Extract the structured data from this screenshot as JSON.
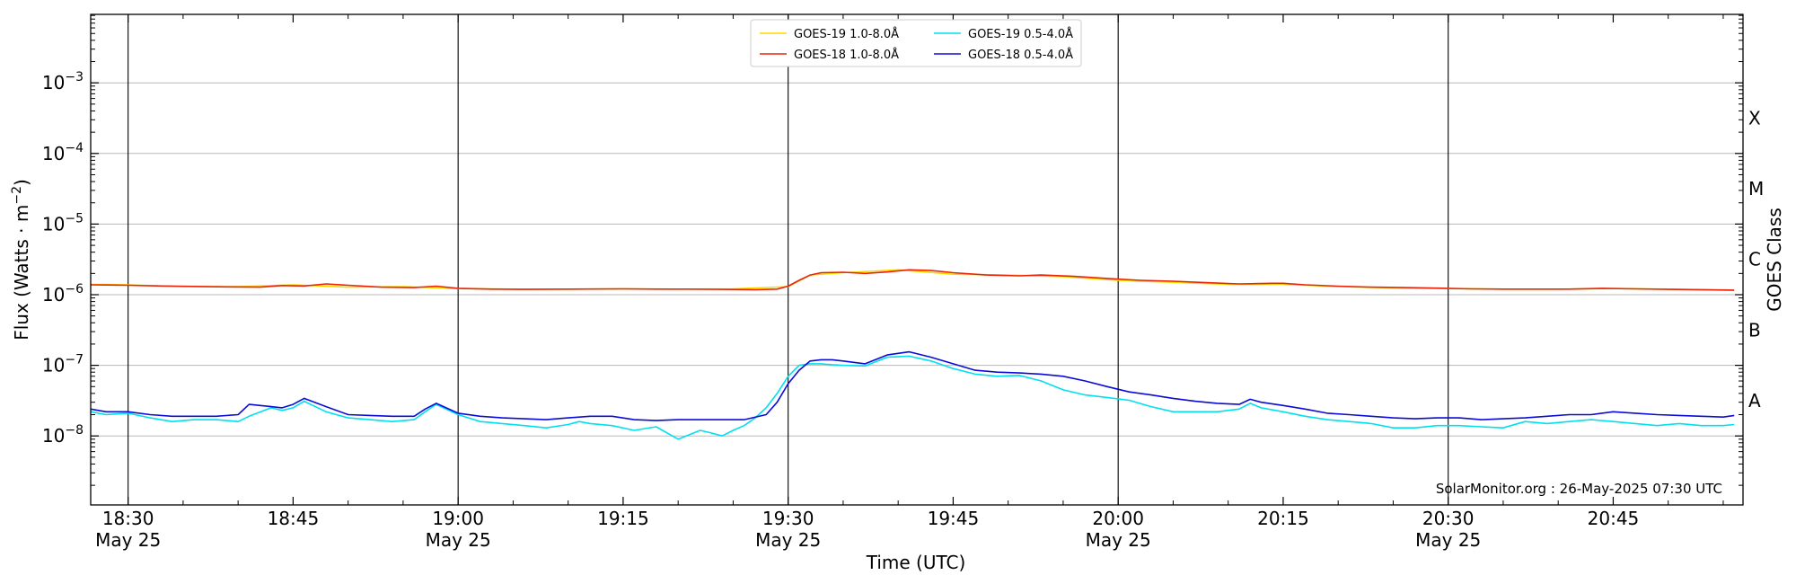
{
  "chart_data": {
    "type": "line",
    "xlabel": "Time (UTC)",
    "ylabel": "Flux (Watts · m",
    "ylabel_superscript": "−2",
    "ylabel_close": ")",
    "right_label": "GOES Class",
    "credit": "SolarMonitor.org : 26-May-2025 07:30 UTC",
    "x_unit": "minutes after 18:00 UTC, 25-May-2025",
    "xlim": [
      26.6,
      176.8
    ],
    "ylim_log10": [
      -9,
      -6
    ],
    "ylim_display": [
      "1e-9 (below axis)",
      "1e-2"
    ],
    "y_scale": "log",
    "grid": "horizontal at each decade",
    "legend_position": "top-center",
    "x_ticks": [
      {
        "value": 30,
        "time": "18:30",
        "date": "May 25"
      },
      {
        "value": 45,
        "time": "18:45",
        "date": ""
      },
      {
        "value": 60,
        "time": "19:00",
        "date": "May 25"
      },
      {
        "value": 75,
        "time": "19:15",
        "date": ""
      },
      {
        "value": 90,
        "time": "19:30",
        "date": "May 25"
      },
      {
        "value": 105,
        "time": "19:45",
        "date": ""
      },
      {
        "value": 120,
        "time": "20:00",
        "date": "May 25"
      },
      {
        "value": 135,
        "time": "20:15",
        "date": ""
      },
      {
        "value": 150,
        "time": "20:30",
        "date": "May 25"
      },
      {
        "value": 165,
        "time": "20:45",
        "date": ""
      }
    ],
    "vertical_lines_at": [
      30,
      60,
      90,
      120,
      150
    ],
    "y_ticks": [
      {
        "exp": -8,
        "base": "10",
        "sup": "−8"
      },
      {
        "exp": -7,
        "base": "10",
        "sup": "−7"
      },
      {
        "exp": -6,
        "base": "10",
        "sup": "−6"
      },
      {
        "exp": -5,
        "base": "10",
        "sup": "−5"
      },
      {
        "exp": -4,
        "base": "10",
        "sup": "−4"
      },
      {
        "exp": -3,
        "base": "10",
        "sup": "−3"
      }
    ],
    "goes_classes": [
      {
        "label": "A",
        "exp": -7.5
      },
      {
        "label": "B",
        "exp": -6.5
      },
      {
        "label": "C",
        "exp": -5.5
      },
      {
        "label": "M",
        "exp": -4.5
      },
      {
        "label": "X",
        "exp": -3.5
      }
    ],
    "series": [
      {
        "name": "GOES-19 1.0-8.0Å",
        "color": "#ffd700",
        "x": [
          26.6,
          30,
          35,
          40,
          45,
          50,
          55,
          60,
          65,
          70,
          75,
          80,
          85,
          90,
          92,
          95,
          100,
          105,
          110,
          115,
          120,
          125,
          130,
          135,
          140,
          145,
          150,
          155,
          160,
          165,
          170,
          176
        ],
        "y": [
          1.4e-06,
          1.38e-06,
          1.3e-06,
          1.3e-06,
          1.38e-06,
          1.28e-06,
          1.3e-06,
          1.22e-06,
          1.2e-06,
          1.2e-06,
          1.21e-06,
          1.2e-06,
          1.21e-06,
          1.3e-06,
          1.9e-06,
          2.05e-06,
          2.25e-06,
          1.95e-06,
          1.9e-06,
          1.8e-06,
          1.6e-06,
          1.5e-06,
          1.4e-06,
          1.4e-06,
          1.3e-06,
          1.25e-06,
          1.22e-06,
          1.2e-06,
          1.2e-06,
          1.22e-06,
          1.2e-06,
          1.15e-06
        ]
      },
      {
        "name": "GOES-18 1.0-8.0Å",
        "color": "#e8260c",
        "x": [
          26.6,
          30,
          33,
          36,
          39,
          42,
          44,
          46,
          48,
          50,
          53,
          56,
          58,
          60,
          63,
          66,
          70,
          75,
          78,
          81,
          84,
          87,
          89,
          90,
          91,
          92,
          93,
          95,
          97,
          99,
          101,
          103,
          105,
          108,
          111,
          113,
          116,
          119,
          122,
          125,
          128,
          131,
          134,
          135,
          137,
          140,
          143,
          146,
          149,
          152,
          155,
          158,
          161,
          164,
          167,
          170,
          173,
          176
        ],
        "y": [
          1.38e-06,
          1.36e-06,
          1.33e-06,
          1.31e-06,
          1.29e-06,
          1.28e-06,
          1.35e-06,
          1.33e-06,
          1.42e-06,
          1.36e-06,
          1.28e-06,
          1.26e-06,
          1.32e-06,
          1.23e-06,
          1.2e-06,
          1.19e-06,
          1.2e-06,
          1.21e-06,
          1.2e-06,
          1.2e-06,
          1.19e-06,
          1.18e-06,
          1.2e-06,
          1.32e-06,
          1.6e-06,
          1.9e-06,
          2.05e-06,
          2.08e-06,
          2e-06,
          2.1e-06,
          2.25e-06,
          2.2e-06,
          2.05e-06,
          1.9e-06,
          1.85e-06,
          1.9e-06,
          1.82e-06,
          1.7e-06,
          1.6e-06,
          1.55e-06,
          1.48e-06,
          1.42e-06,
          1.45e-06,
          1.45e-06,
          1.38e-06,
          1.32e-06,
          1.28e-06,
          1.26e-06,
          1.24e-06,
          1.21e-06,
          1.2e-06,
          1.2e-06,
          1.2e-06,
          1.23e-06,
          1.21e-06,
          1.19e-06,
          1.18e-06,
          1.16e-06
        ]
      },
      {
        "name": "GOES-19 0.5-4.0Å",
        "color": "#00e0ee",
        "x": [
          26.6,
          28,
          30,
          32,
          34,
          36,
          38,
          40,
          41,
          43,
          44,
          45,
          46,
          48,
          50,
          52,
          54,
          56,
          57,
          58,
          60,
          62,
          64,
          66,
          68,
          70,
          71,
          72,
          74,
          76,
          78,
          80,
          82,
          83,
          84,
          85,
          86,
          87,
          88,
          89,
          90,
          91,
          92,
          93,
          94,
          95,
          97,
          99,
          101,
          103,
          105,
          107,
          109,
          111,
          113,
          115,
          117,
          119,
          121,
          123,
          125,
          127,
          129,
          131,
          132,
          133,
          135,
          137,
          139,
          141,
          143,
          145,
          147,
          149,
          151,
          153,
          155,
          157,
          159,
          161,
          163,
          165,
          167,
          169,
          171,
          173,
          175,
          176
        ],
        "y": [
          2.2e-08,
          2e-08,
          2.1e-08,
          1.8e-08,
          1.6e-08,
          1.7e-08,
          1.7e-08,
          1.6e-08,
          1.9e-08,
          2.5e-08,
          2.3e-08,
          2.5e-08,
          3.1e-08,
          2.2e-08,
          1.8e-08,
          1.7e-08,
          1.6e-08,
          1.7e-08,
          2.2e-08,
          2.8e-08,
          2e-08,
          1.6e-08,
          1.5e-08,
          1.4e-08,
          1.3e-08,
          1.45e-08,
          1.6e-08,
          1.5e-08,
          1.4e-08,
          1.2e-08,
          1.35e-08,
          9e-09,
          1.2e-08,
          1.1e-08,
          1e-08,
          1.2e-08,
          1.4e-08,
          1.8e-08,
          2.5e-08,
          4e-08,
          7e-08,
          1e-07,
          1.05e-07,
          1.05e-07,
          1.02e-07,
          1e-07,
          9.8e-08,
          1.3e-07,
          1.35e-07,
          1.15e-07,
          9e-08,
          7.5e-08,
          7e-08,
          7.2e-08,
          6e-08,
          4.5e-08,
          3.8e-08,
          3.5e-08,
          3.2e-08,
          2.6e-08,
          2.2e-08,
          2.2e-08,
          2.2e-08,
          2.4e-08,
          2.9e-08,
          2.5e-08,
          2.2e-08,
          1.9e-08,
          1.7e-08,
          1.6e-08,
          1.5e-08,
          1.3e-08,
          1.3e-08,
          1.4e-08,
          1.4e-08,
          1.35e-08,
          1.3e-08,
          1.6e-08,
          1.5e-08,
          1.6e-08,
          1.7e-08,
          1.6e-08,
          1.5e-08,
          1.4e-08,
          1.5e-08,
          1.4e-08,
          1.4e-08,
          1.45e-08
        ]
      },
      {
        "name": "GOES-18 0.5-4.0Å",
        "color": "#0b0bd8",
        "x": [
          26.6,
          28,
          30,
          32,
          34,
          36,
          38,
          40,
          41,
          43,
          44,
          45,
          46,
          48,
          50,
          52,
          54,
          56,
          57,
          58,
          60,
          62,
          64,
          66,
          68,
          70,
          72,
          74,
          76,
          78,
          80,
          82,
          84,
          86,
          88,
          89,
          90,
          91,
          92,
          93,
          94,
          95,
          97,
          99,
          101,
          103,
          105,
          107,
          109,
          111,
          113,
          115,
          117,
          119,
          121,
          123,
          125,
          127,
          129,
          131,
          132,
          133,
          135,
          137,
          139,
          141,
          143,
          145,
          147,
          149,
          151,
          153,
          155,
          157,
          159,
          161,
          163,
          165,
          167,
          169,
          171,
          173,
          175,
          176
        ],
        "y": [
          2.4e-08,
          2.2e-08,
          2.2e-08,
          2e-08,
          1.9e-08,
          1.9e-08,
          1.9e-08,
          2e-08,
          2.8e-08,
          2.6e-08,
          2.5e-08,
          2.8e-08,
          3.4e-08,
          2.6e-08,
          2e-08,
          1.95e-08,
          1.9e-08,
          1.9e-08,
          2.4e-08,
          2.9e-08,
          2.1e-08,
          1.9e-08,
          1.8e-08,
          1.75e-08,
          1.7e-08,
          1.8e-08,
          1.9e-08,
          1.9e-08,
          1.7e-08,
          1.65e-08,
          1.7e-08,
          1.7e-08,
          1.7e-08,
          1.7e-08,
          2e-08,
          3e-08,
          5.5e-08,
          8.5e-08,
          1.15e-07,
          1.2e-07,
          1.2e-07,
          1.15e-07,
          1.05e-07,
          1.4e-07,
          1.55e-07,
          1.3e-07,
          1.05e-07,
          8.5e-08,
          8e-08,
          7.8e-08,
          7.5e-08,
          7e-08,
          6e-08,
          5e-08,
          4.2e-08,
          3.8e-08,
          3.4e-08,
          3.1e-08,
          2.9e-08,
          2.8e-08,
          3.3e-08,
          3e-08,
          2.7e-08,
          2.4e-08,
          2.1e-08,
          2e-08,
          1.9e-08,
          1.8e-08,
          1.75e-08,
          1.8e-08,
          1.8e-08,
          1.7e-08,
          1.75e-08,
          1.8e-08,
          1.9e-08,
          2e-08,
          2e-08,
          2.2e-08,
          2.1e-08,
          2e-08,
          1.95e-08,
          1.9e-08,
          1.85e-08,
          1.95e-08
        ]
      }
    ]
  }
}
